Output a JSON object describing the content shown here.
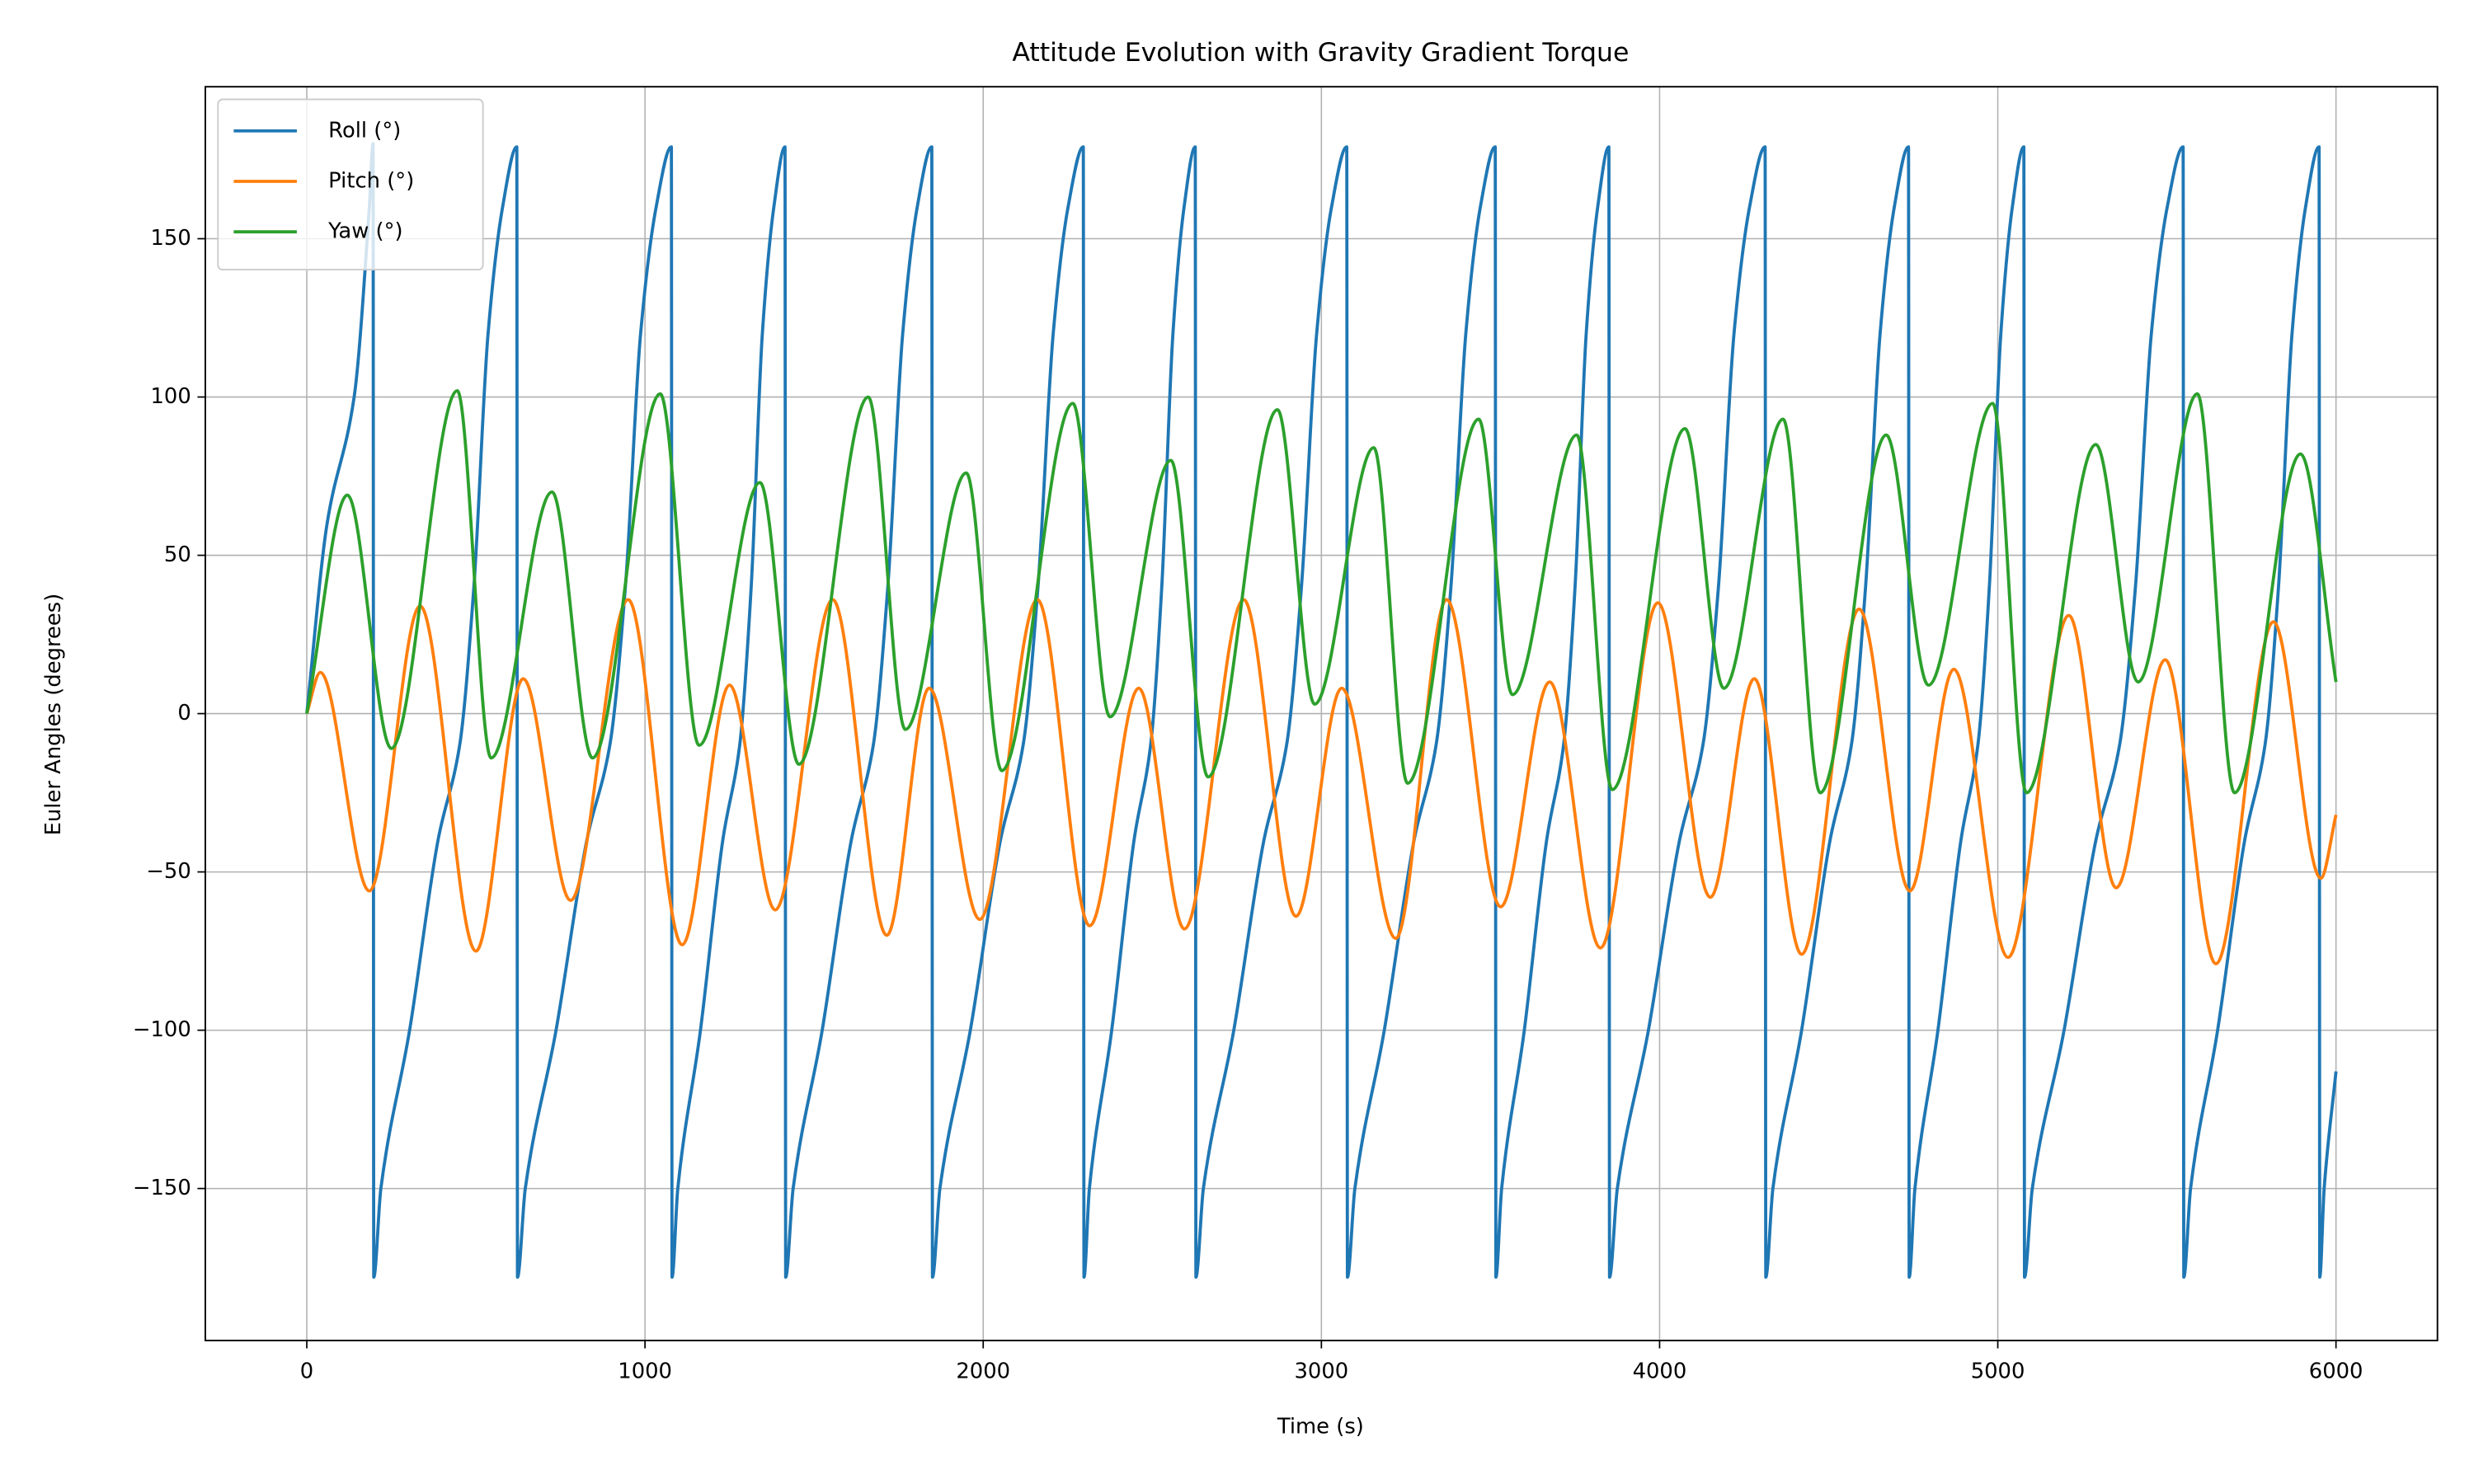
{
  "chart_data": {
    "type": "line",
    "title": "Attitude Evolution with Gravity Gradient Torque",
    "xlabel": "Time (s)",
    "ylabel": "Euler Angles (degrees)",
    "xlim": [
      -300,
      6300
    ],
    "ylim": [
      -198,
      198
    ],
    "xticks": [
      0,
      1000,
      2000,
      3000,
      4000,
      5000,
      6000
    ],
    "yticks": [
      {
        "value": -150,
        "label": "−150"
      },
      {
        "value": -100,
        "label": "−100"
      },
      {
        "value": -50,
        "label": "−50"
      },
      0,
      50,
      100,
      150
    ],
    "grid": true,
    "legend": "upper left",
    "series": [
      {
        "name": "Roll (°)",
        "color": "#1f77b4",
        "x": [
          0,
          60,
          140,
          185,
          196,
          198,
          219,
          304,
          388,
          452,
          494,
          536,
          579,
          621,
          623,
          646,
          737,
          828,
          896,
          942,
          987,
          1033,
          1078,
          1080,
          1097,
          1164,
          1230,
          1280,
          1314,
          1347,
          1381,
          1414,
          1416,
          1438,
          1524,
          1610,
          1675,
          1718,
          1762,
          1805,
          1848,
          1850,
          1872,
          1962,
          2051,
          2118,
          2162,
          2207,
          2251,
          2296,
          2298,
          2314,
          2380,
          2446,
          2495,
          2528,
          2561,
          2594,
          2627,
          2629,
          2651,
          2741,
          2830,
          2897,
          2941,
          2986,
          3030,
          3075,
          3077,
          3099,
          3186,
          3274,
          3339,
          3383,
          3427,
          3470,
          3514,
          3516,
          3533,
          3600,
          3666,
          3716,
          3750,
          3783,
          3817,
          3850,
          3852,
          3875,
          3967,
          4059,
          4128,
          4174,
          4220,
          4266,
          4312,
          4314,
          4335,
          4420,
          4504,
          4567,
          4609,
          4652,
          4694,
          4736,
          4738,
          4755,
          4823,
          4891,
          4941,
          4975,
          5009,
          5043,
          5077,
          5079,
          5102,
          5196,
          5290,
          5360,
          5407,
          5454,
          5501,
          5548,
          5550,
          5570,
          5650,
          5730,
          5790,
          5830,
          5870,
          5910,
          5950,
          5952,
          5965,
          6000
        ],
        "values": [
          0,
          60,
          100,
          160,
          180,
          -178,
          -150,
          -100,
          -40,
          -10,
          40,
          120,
          160,
          179,
          -178,
          -150,
          -100,
          -40,
          -10,
          40,
          120,
          160,
          179,
          -178,
          -150,
          -100,
          -40,
          -10,
          40,
          120,
          160,
          179,
          -178,
          -150,
          -100,
          -40,
          -10,
          40,
          120,
          160,
          179,
          -178,
          -150,
          -100,
          -40,
          -10,
          40,
          120,
          160,
          179,
          -178,
          -150,
          -100,
          -40,
          -10,
          40,
          120,
          160,
          179,
          -178,
          -150,
          -100,
          -40,
          -10,
          40,
          120,
          160,
          179,
          -178,
          -150,
          -100,
          -40,
          -10,
          40,
          120,
          160,
          179,
          -178,
          -150,
          -100,
          -40,
          -10,
          40,
          120,
          160,
          179,
          -178,
          -150,
          -100,
          -40,
          -10,
          40,
          120,
          160,
          179,
          -178,
          -150,
          -100,
          -40,
          -10,
          40,
          120,
          160,
          179,
          -178,
          -150,
          -100,
          -40,
          -10,
          40,
          120,
          160,
          179,
          -178,
          -150,
          -100,
          -40,
          -10,
          40,
          120,
          160,
          179,
          -178,
          -150,
          -100,
          -40,
          -10,
          40,
          120,
          160,
          179,
          -178,
          -150,
          -113
        ]
      },
      {
        "name": "Pitch (°)",
        "color": "#ff7f0e",
        "x": [
          0,
          40,
          185,
          335,
          500,
          640,
          780,
          950,
          1110,
          1250,
          1385,
          1555,
          1715,
          1840,
          1990,
          2160,
          2315,
          2460,
          2595,
          2770,
          2925,
          3060,
          3220,
          3370,
          3530,
          3675,
          3825,
          3995,
          4150,
          4280,
          4420,
          4590,
          4740,
          4870,
          5030,
          5210,
          5350,
          5495,
          5645,
          5815,
          5955,
          6000
        ],
        "values": [
          0,
          13,
          -56,
          34,
          -75,
          11,
          -59,
          36,
          -73,
          9,
          -62,
          36,
          -70,
          8,
          -65,
          36,
          -67,
          8,
          -68,
          36,
          -64,
          8,
          -71,
          36,
          -61,
          10,
          -74,
          35,
          -58,
          11,
          -76,
          33,
          -56,
          14,
          -77,
          31,
          -55,
          17,
          -79,
          29,
          -52,
          -32
        ]
      },
      {
        "name": "Yaw (°)",
        "color": "#2ca02c",
        "x": [
          0,
          120,
          250,
          445,
          545,
          725,
          845,
          1045,
          1160,
          1340,
          1455,
          1660,
          1770,
          1950,
          2055,
          2265,
          2375,
          2555,
          2665,
          2870,
          2980,
          3155,
          3255,
          3465,
          3565,
          3755,
          3860,
          4075,
          4190,
          4365,
          4475,
          4670,
          4795,
          4985,
          5085,
          5290,
          5415,
          5590,
          5700,
          5895,
          6000
        ],
        "values": [
          0,
          69,
          -11,
          102,
          -14,
          70,
          -14,
          101,
          -10,
          73,
          -16,
          100,
          -5,
          76,
          -18,
          98,
          -1,
          80,
          -20,
          96,
          3,
          84,
          -22,
          93,
          6,
          88,
          -24,
          90,
          8,
          93,
          -25,
          88,
          9,
          98,
          -25,
          85,
          10,
          101,
          -25,
          82,
          10
        ]
      }
    ]
  }
}
